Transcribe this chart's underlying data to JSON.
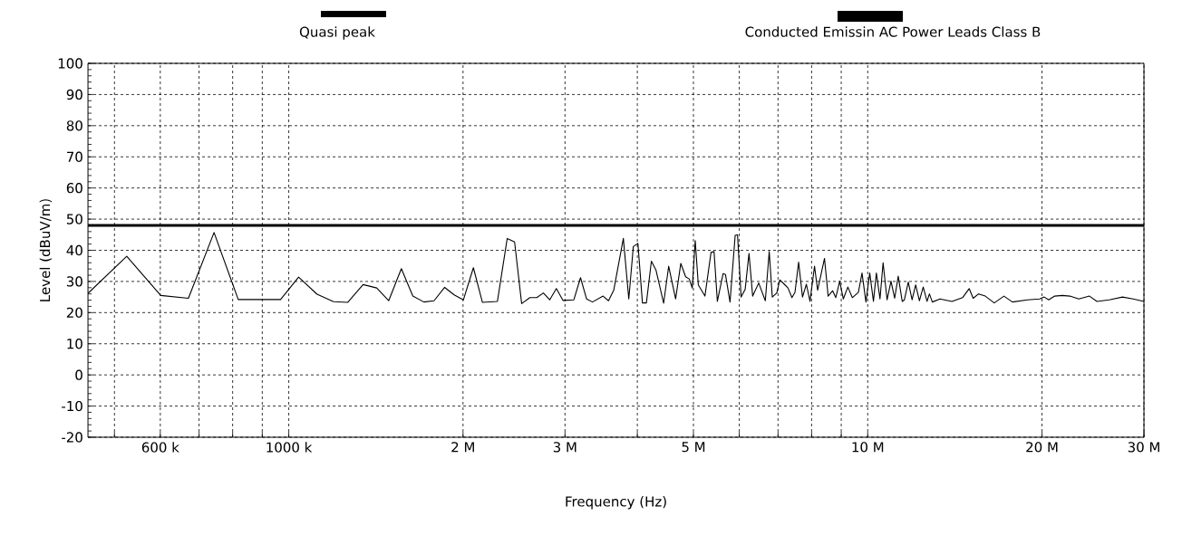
{
  "chart_data": {
    "type": "line",
    "xlabel": "Frequency (Hz)",
    "ylabel": "Level (dBuV/m)",
    "log": "x",
    "grid": true,
    "legend": "top",
    "marker": "none",
    "line_style": "solid",
    "xlim": [
      450000,
      30000000
    ],
    "ylim": [
      -20,
      100
    ],
    "xticks": [
      {
        "value": 500000,
        "label": null
      },
      {
        "value": 600000,
        "label": "600 k"
      },
      {
        "value": 700000,
        "label": null
      },
      {
        "value": 800000,
        "label": null
      },
      {
        "value": 900000,
        "label": null
      },
      {
        "value": 1000000,
        "label": "1000 k"
      },
      {
        "value": 2000000,
        "label": "2 M"
      },
      {
        "value": 3000000,
        "label": "3 M"
      },
      {
        "value": 4000000,
        "label": null
      },
      {
        "value": 5000000,
        "label": "5 M"
      },
      {
        "value": 6000000,
        "label": null
      },
      {
        "value": 7000000,
        "label": null
      },
      {
        "value": 8000000,
        "label": null
      },
      {
        "value": 9000000,
        "label": null
      },
      {
        "value": 10000000,
        "label": "10 M"
      },
      {
        "value": 20000000,
        "label": "20 M"
      },
      {
        "value": 30000000,
        "label": "30 M"
      }
    ],
    "yticks": [
      -20,
      -10,
      0,
      10,
      20,
      30,
      40,
      50,
      60,
      70,
      80,
      90,
      100
    ],
    "series": [
      {
        "name": "Quasi peak",
        "color": "#000000",
        "x": [
          450000,
          525000,
          601000,
          671000,
          743000,
          818000,
          968000,
          1040000,
          1119000,
          1195000,
          1265000,
          1344000,
          1419000,
          1488000,
          1565000,
          1638000,
          1712000,
          1782000,
          1859000,
          1931000,
          2003000,
          2084000,
          2160000,
          2293000,
          2384000,
          2455000,
          2525000,
          2609000,
          2682000,
          2753000,
          2823000,
          2899000,
          2977000,
          3108000,
          3191000,
          3269000,
          3347000,
          3491000,
          3567000,
          3642000,
          3784000,
          3867000,
          3937000,
          4009000,
          4082000,
          4147000,
          4230000,
          4309000,
          4441000,
          4531000,
          4658000,
          4755000,
          4847000,
          4917000,
          4976000,
          5036000,
          5098000,
          5234000,
          5362000,
          5427000,
          5499000,
          5625000,
          5680000,
          5783000,
          5903000,
          5958000,
          6045000,
          6141000,
          6237000,
          6328000,
          6482000,
          6655000,
          6759000,
          6842000,
          6966000,
          7050000,
          7178000,
          7283000,
          7398000,
          7488000,
          7597000,
          7716000,
          7836000,
          7949000,
          8093000,
          8193000,
          8421000,
          8544000,
          8699000,
          8806000,
          8945000,
          9074000,
          9240000,
          9406000,
          9636000,
          9775000,
          9929000,
          10080000,
          10230000,
          10350000,
          10500000,
          10630000,
          10800000,
          10970000,
          11130000,
          11290000,
          11470000,
          11570000,
          11750000,
          11930000,
          12100000,
          12280000,
          12470000,
          12660000,
          12780000,
          12930000,
          13330000,
          13980000,
          14580000,
          14970000,
          15210000,
          15540000,
          15960000,
          16540000,
          17190000,
          17780000,
          18880000,
          19820000,
          20170000,
          20540000,
          21030000,
          21680000,
          22340000,
          23150000,
          24150000,
          24890000,
          26120000,
          27550000,
          28740000,
          30000000
        ],
        "values": [
          26.2,
          38.1,
          25.5,
          24.6,
          45.7,
          24.2,
          24.2,
          31.4,
          25.9,
          23.5,
          23.3,
          29.0,
          27.9,
          23.8,
          34.1,
          25.3,
          23.4,
          23.8,
          28.1,
          25.7,
          24.1,
          34.4,
          23.3,
          23.6,
          43.8,
          42.7,
          22.9,
          24.8,
          24.8,
          26.3,
          24.1,
          27.7,
          23.9,
          24.1,
          31.2,
          24.4,
          23.4,
          25.3,
          23.8,
          27.2,
          43.8,
          24.4,
          41.2,
          42.2,
          23.1,
          23.1,
          36.5,
          33.6,
          23.0,
          34.9,
          24.4,
          35.8,
          31.5,
          30.8,
          27.9,
          43.1,
          28.9,
          25.3,
          39.3,
          39.6,
          23.6,
          32.5,
          32.2,
          23.4,
          44.8,
          45.0,
          25.0,
          27.4,
          39.0,
          25.3,
          29.5,
          23.8,
          39.6,
          25.0,
          26.3,
          30.5,
          29.1,
          27.9,
          24.8,
          26.5,
          36.2,
          25.0,
          29.1,
          23.6,
          34.9,
          27.2,
          37.4,
          25.3,
          27.0,
          24.8,
          30.1,
          24.4,
          28.2,
          24.8,
          26.5,
          32.7,
          23.4,
          32.7,
          23.6,
          32.7,
          24.4,
          36.0,
          24.1,
          30.1,
          24.6,
          31.7,
          23.6,
          24.1,
          29.8,
          24.1,
          28.9,
          23.8,
          28.2,
          23.6,
          26.0,
          23.4,
          24.4,
          23.6,
          24.8,
          27.7,
          24.6,
          26.0,
          25.3,
          23.1,
          25.3,
          23.4,
          24.1,
          24.4,
          25.0,
          24.1,
          25.3,
          25.5,
          25.3,
          24.4,
          25.3,
          23.6,
          24.1,
          25.0,
          24.4,
          23.6
        ]
      },
      {
        "name": "Conducted Emissin  AC Power Leads Class B",
        "color": "#000000",
        "x": [
          450000,
          30000000
        ],
        "values": [
          48,
          48
        ]
      }
    ]
  }
}
